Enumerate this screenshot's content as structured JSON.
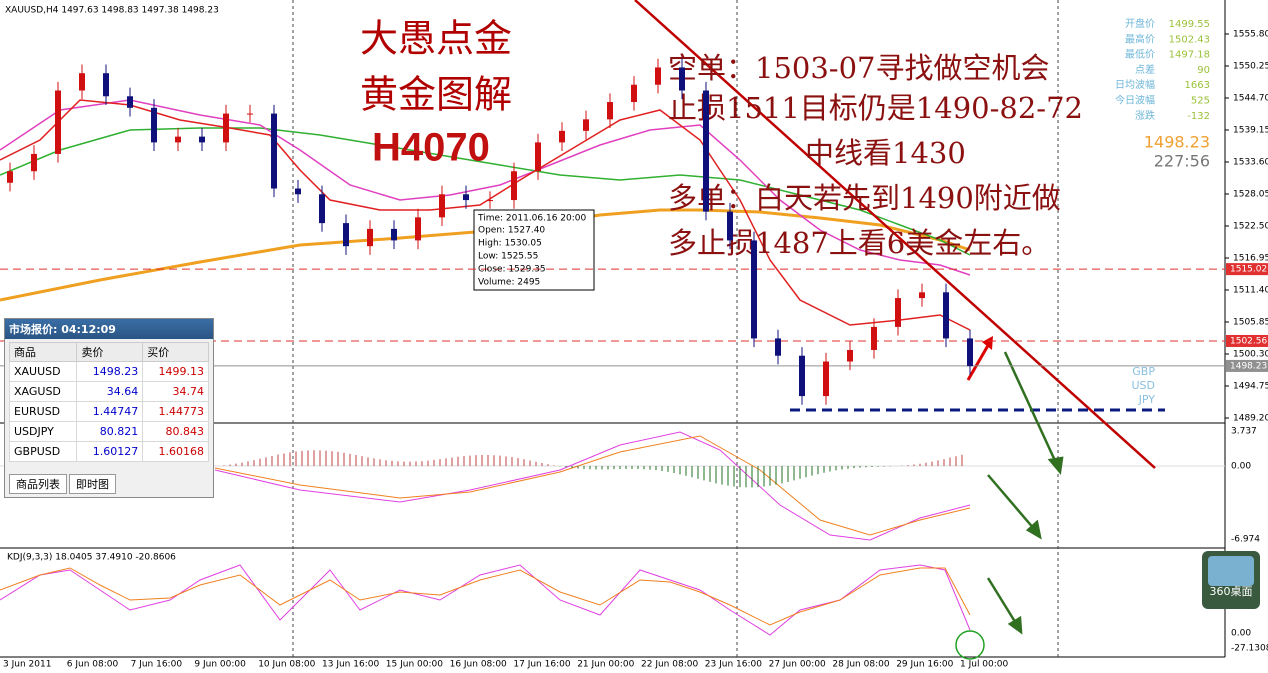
{
  "header": {
    "symbol_line": "XAUUSD,H4  1497.63 1498.83 1497.38 1498.23"
  },
  "annotations": {
    "title_lines": [
      "大愚点金",
      "黄金图解"
    ],
    "code": "H4070",
    "notes": [
      "空单：1503-07寻找做空机会",
      "止损1511目标仍是1490-82-72",
      "中线看1430",
      "多单：白天若先到1490附近做",
      "多止损1487上看6美金左右。"
    ]
  },
  "quote_panel": {
    "rows": [
      {
        "label": "开盘价",
        "value": "1499.55"
      },
      {
        "label": "最高价",
        "value": "1502.43"
      },
      {
        "label": "最低价",
        "value": "1497.18"
      },
      {
        "label": "点差",
        "value": "90"
      },
      {
        "label": "日均波幅",
        "value": "1663"
      },
      {
        "label": "今日波幅",
        "value": "525"
      },
      {
        "label": "涨跌",
        "value": "-132"
      }
    ],
    "price": "1498.23",
    "timer": "227:56"
  },
  "tooltip": {
    "lines": [
      "Time: 2011.06.16 20:00",
      "Open: 1527.40",
      "High: 1530.05",
      "Low: 1525.55",
      "Close: 1529.35",
      "Volume: 2495"
    ]
  },
  "market_watch": {
    "title": "市场报价: 04:12:09",
    "columns": [
      "商品",
      "卖价",
      "买价"
    ],
    "rows": [
      [
        "XAUUSD",
        "1498.23",
        "1499.13"
      ],
      [
        "XAGUSD",
        "34.64",
        "34.74"
      ],
      [
        "EURUSD",
        "1.44747",
        "1.44773"
      ],
      [
        "USDJPY",
        "80.821",
        "80.843"
      ],
      [
        "GBPUSD",
        "1.60127",
        "1.60168"
      ]
    ],
    "tabs": [
      "商品列表",
      "即时图"
    ]
  },
  "price_axis": {
    "range": [
      1489.2,
      1555.8
    ],
    "ticks": [
      {
        "value": 1555.8,
        "label": "1555.80"
      },
      {
        "value": 1550.25,
        "label": "1550.25"
      },
      {
        "value": 1544.7,
        "label": "1544.70"
      },
      {
        "value": 1539.15,
        "label": "1539.15"
      },
      {
        "value": 1533.6,
        "label": "1533.60"
      },
      {
        "value": 1528.05,
        "label": "1528.05"
      },
      {
        "value": 1522.5,
        "label": "1522.50"
      },
      {
        "value": 1516.95,
        "label": "1516.95"
      },
      {
        "value": 1511.4,
        "label": "1511.40"
      },
      {
        "value": 1505.85,
        "label": "1505.85"
      },
      {
        "value": 1500.3,
        "label": "1500.30"
      },
      {
        "value": 1494.75,
        "label": "1494.75"
      },
      {
        "value": 1489.2,
        "label": "1489.20"
      }
    ]
  },
  "price_lines": [
    {
      "value": 1515.02,
      "label": "1515.02",
      "color": "#e03030"
    },
    {
      "value": 1502.56,
      "label": "1502.56",
      "color": "#e03030"
    },
    {
      "value": 1498.23,
      "label": "1498.23",
      "color": "#909090"
    }
  ],
  "candles": [
    [
      1530,
      1533.5,
      1528.5,
      1532
    ],
    [
      1532,
      1536.5,
      1530.5,
      1535
    ],
    [
      1535,
      1547.5,
      1533.5,
      1546
    ],
    [
      1546,
      1550.5,
      1544.5,
      1549
    ],
    [
      1549,
      1550.5,
      1543.5,
      1545
    ],
    [
      1545,
      1546.5,
      1541.5,
      1543
    ],
    [
      1543,
      1544.5,
      1535.5,
      1537
    ],
    [
      1537,
      1539.5,
      1535.5,
      1538
    ],
    [
      1538,
      1539.5,
      1535.5,
      1537
    ],
    [
      1537,
      1543.5,
      1535.5,
      1542
    ],
    [
      1542,
      1543.5,
      1540.5,
      1542
    ],
    [
      1542,
      1543.5,
      1527.5,
      1529
    ],
    [
      1529,
      1530.5,
      1526.5,
      1528
    ],
    [
      1528,
      1529.5,
      1521.5,
      1523
    ],
    [
      1523,
      1524.5,
      1517.5,
      1519
    ],
    [
      1519,
      1523.5,
      1517.5,
      1522
    ],
    [
      1522,
      1523.5,
      1518.5,
      1520
    ],
    [
      1520,
      1525.5,
      1518.5,
      1524
    ],
    [
      1524,
      1529.5,
      1522.5,
      1528
    ],
    [
      1528,
      1529.5,
      1525.5,
      1527
    ],
    [
      1527,
      1528.5,
      1525.5,
      1527
    ],
    [
      1527,
      1533.5,
      1525.5,
      1532
    ],
    [
      1532,
      1538.5,
      1530.5,
      1537
    ],
    [
      1537,
      1540.5,
      1535.5,
      1539
    ],
    [
      1539,
      1542.5,
      1537.5,
      1541
    ],
    [
      1541,
      1545.5,
      1539.5,
      1544
    ],
    [
      1544,
      1548.5,
      1542.5,
      1547
    ],
    [
      1547,
      1551.5,
      1545.5,
      1550
    ],
    [
      1550,
      1551.5,
      1544.5,
      1546
    ],
    [
      1546,
      1547.5,
      1523.5,
      1525
    ],
    [
      1525,
      1526.5,
      1518.5,
      1520
    ],
    [
      1520,
      1521.5,
      1501.5,
      1503
    ],
    [
      1503,
      1504.5,
      1498.5,
      1500
    ],
    [
      1500,
      1501.5,
      1491.5,
      1493
    ],
    [
      1493,
      1500.5,
      1491.5,
      1499
    ],
    [
      1499,
      1502.5,
      1497.5,
      1501
    ],
    [
      1501,
      1506.5,
      1499.5,
      1505
    ],
    [
      1505,
      1511.5,
      1503.5,
      1510
    ],
    [
      1510,
      1512.5,
      1508.5,
      1511
    ],
    [
      1511,
      1512.5,
      1501.5,
      1503
    ],
    [
      1503,
      1504.5,
      1496.7,
      1498.2
    ]
  ],
  "macd_axis": {
    "ticks": [
      "3.737",
      "0.00",
      "-6.974"
    ]
  },
  "kdj": {
    "label": "KDJ(9,3,3) 18.0405 37.4910 -20.8606",
    "ticks": [
      "0.00",
      "-27.1308"
    ]
  },
  "time_axis": [
    "3 Jun 2011",
    "6 Jun 08:00",
    "7 Jun 16:00",
    "9 Jun 00:00",
    "10 Jun 08:00",
    "13 Jun 16:00",
    "15 Jun 00:00",
    "16 Jun 08:00",
    "17 Jun 16:00",
    "21 Jun 00:00",
    "22 Jun 08:00",
    "23 Jun 16:00",
    "27 Jun 00:00",
    "28 Jun 08:00",
    "29 Jun 16:00",
    "1 Jul 00:00"
  ],
  "currency_labels": [
    "GBP",
    "USD",
    "JPY"
  ],
  "widget": "360桌面"
}
